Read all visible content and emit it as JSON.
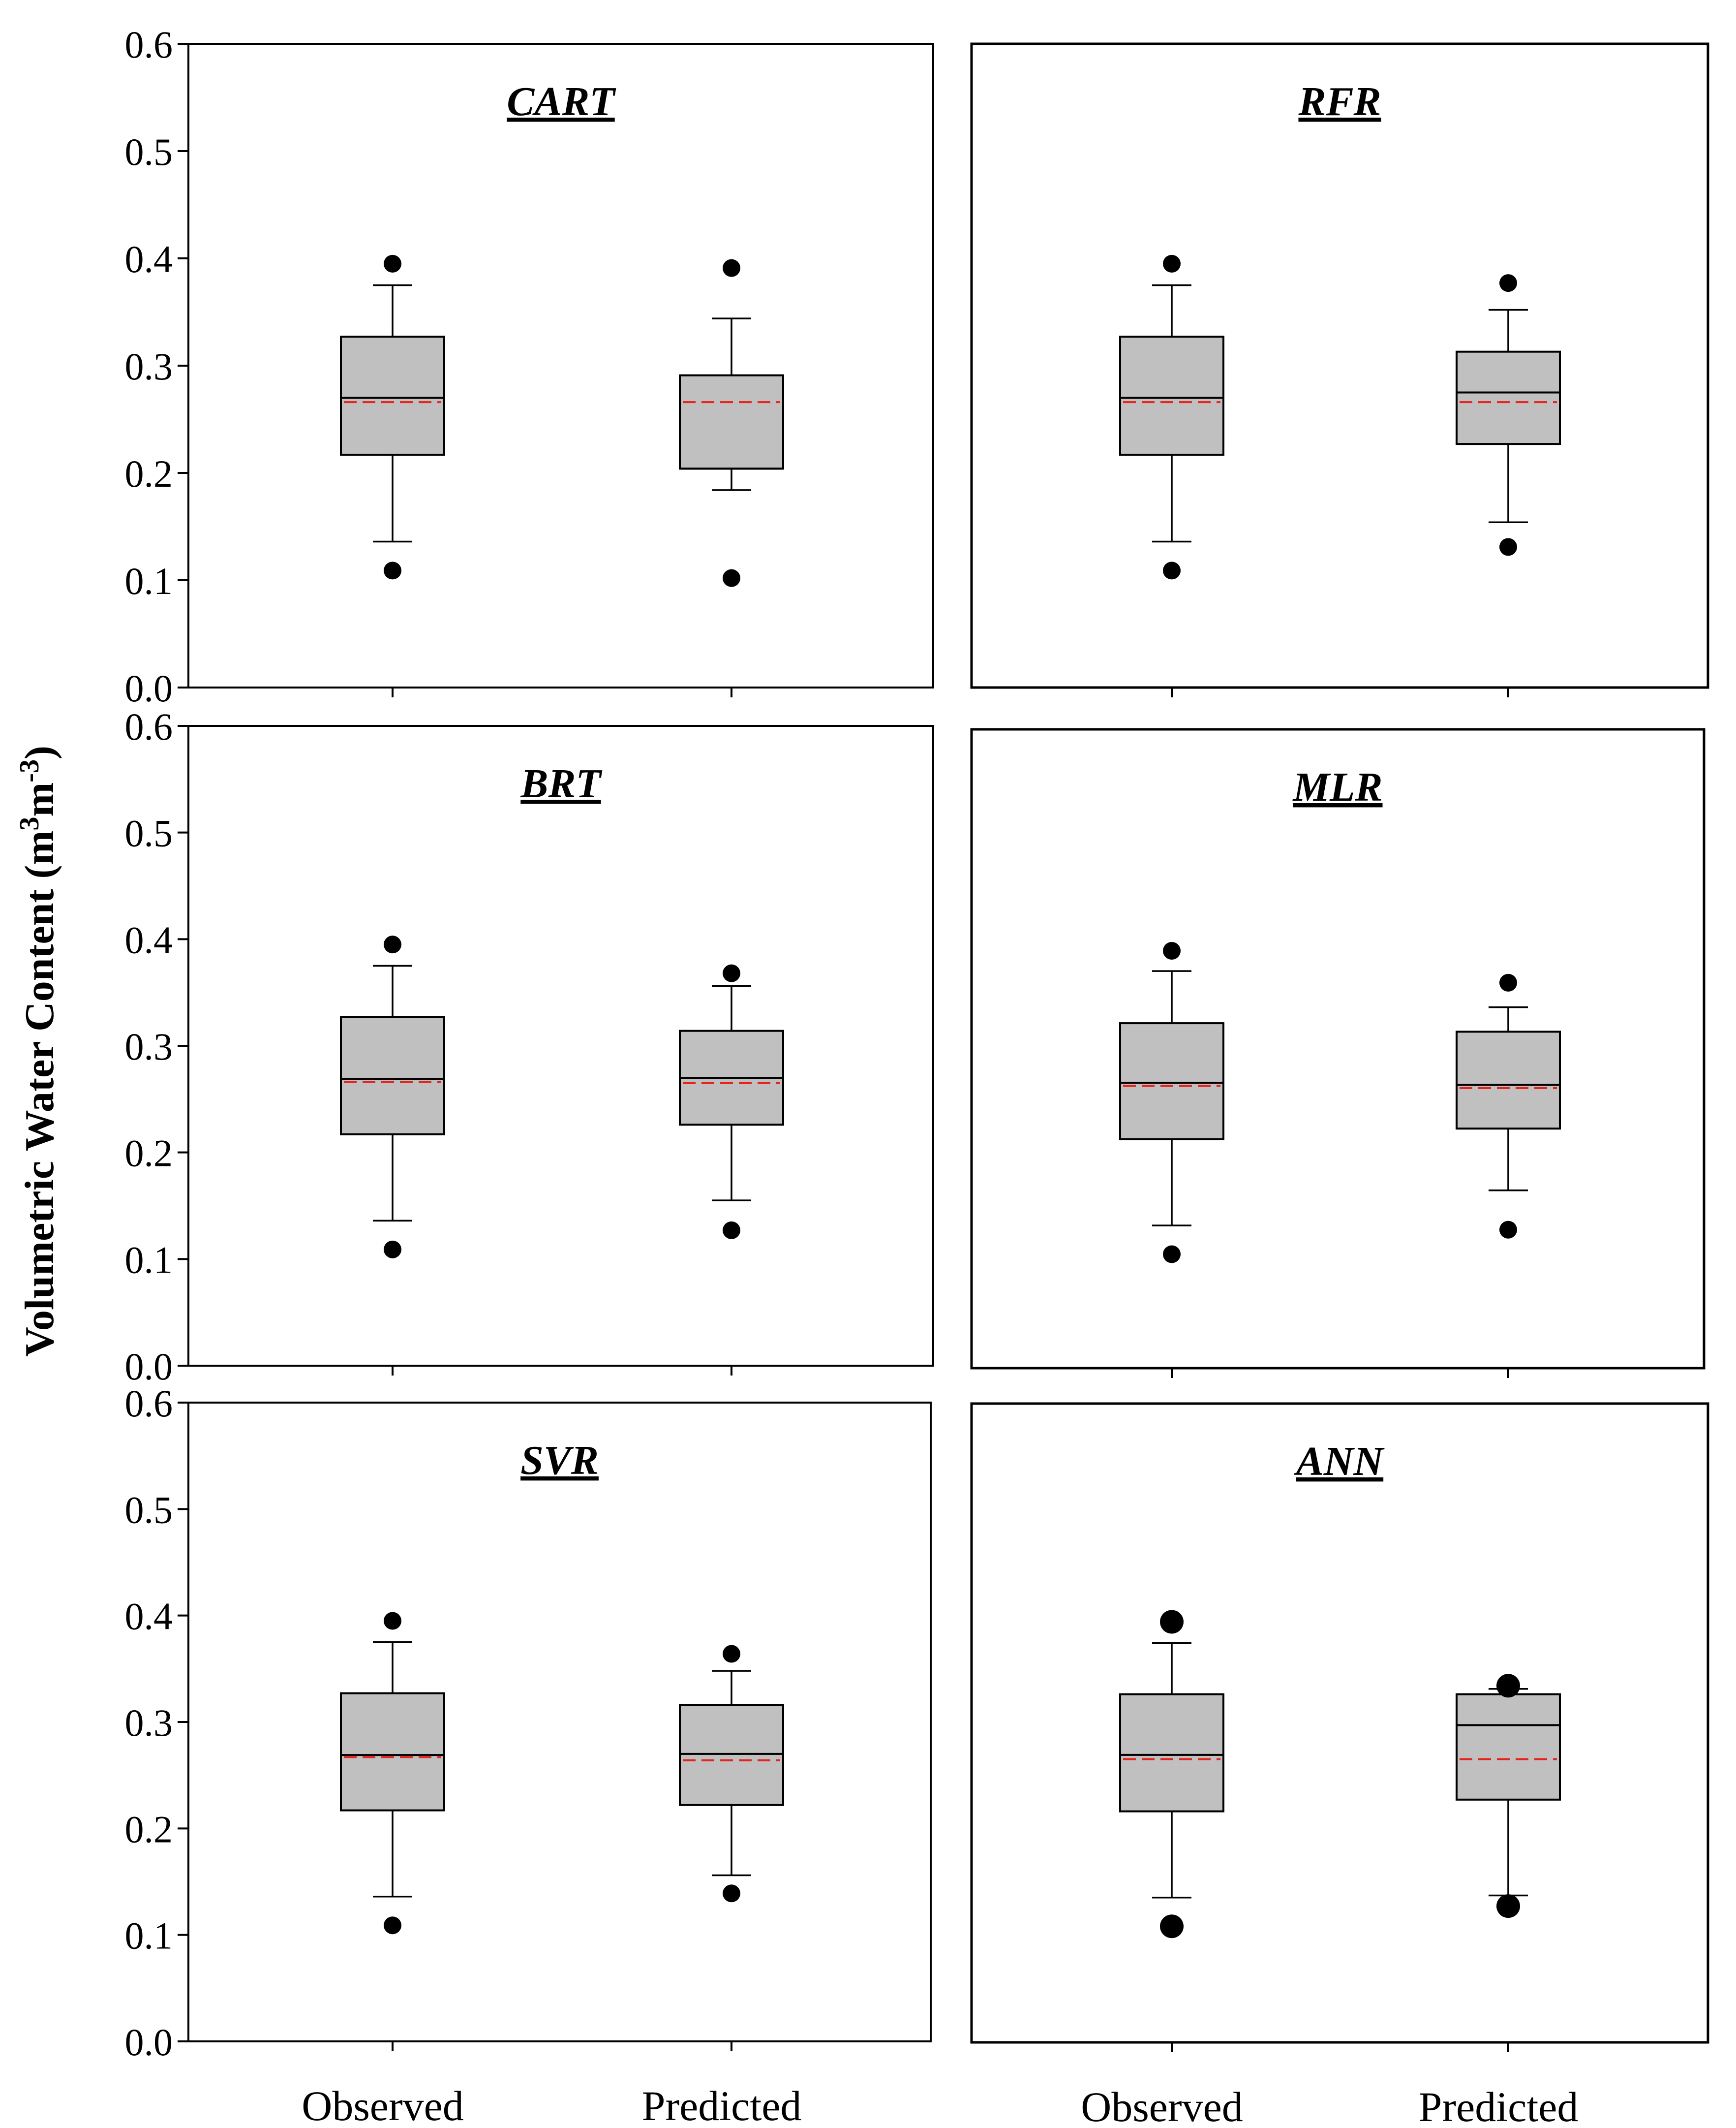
{
  "figure": {
    "ylabel_main": "Volumetric Water Content (m",
    "ylabel_sup1": "3",
    "ylabel_mid": "m",
    "ylabel_sup2": "-3",
    "ylabel_end": ")"
  },
  "colors": {
    "box_fill": "#c0c0c0",
    "mean_line": "#e8211c",
    "median_line": "#000000",
    "outlier": "#000000"
  },
  "chart_data": [
    {
      "type": "box",
      "title": "CART",
      "ylim": [
        0,
        0.6
      ],
      "yticks": [
        "0.0",
        "0.1",
        "0.2",
        "0.3",
        "0.4",
        "0.5",
        "0.6"
      ],
      "categories": [
        "Observed",
        "Predicted"
      ],
      "show_category_labels": false,
      "boxes": [
        {
          "name": "Observed",
          "whisker_low": 0.136,
          "q1": 0.217,
          "median": 0.27,
          "mean": 0.266,
          "q3": 0.327,
          "whisker_high": 0.375,
          "outliers": [
            0.395,
            0.109
          ]
        },
        {
          "name": "Predicted",
          "whisker_low": 0.184,
          "q1": 0.204,
          "median": 0.204,
          "mean": 0.266,
          "q3": 0.291,
          "whisker_high": 0.344,
          "outliers": [
            0.391,
            0.102
          ]
        }
      ]
    },
    {
      "type": "box",
      "title": "RFR",
      "ylim": [
        0,
        0.6
      ],
      "yticks": [],
      "categories": [
        "Observed",
        "Predicted"
      ],
      "show_category_labels": false,
      "boxes": [
        {
          "name": "Observed",
          "whisker_low": 0.136,
          "q1": 0.217,
          "median": 0.27,
          "mean": 0.266,
          "q3": 0.327,
          "whisker_high": 0.375,
          "outliers": [
            0.395,
            0.109
          ]
        },
        {
          "name": "Predicted",
          "whisker_low": 0.154,
          "q1": 0.227,
          "median": 0.275,
          "mean": 0.266,
          "q3": 0.313,
          "whisker_high": 0.352,
          "outliers": [
            0.377,
            0.131
          ]
        }
      ]
    },
    {
      "type": "box",
      "title": "BRT",
      "ylim": [
        0,
        0.6
      ],
      "yticks": [
        "0.0",
        "0.1",
        "0.2",
        "0.3",
        "0.4",
        "0.5",
        "0.6"
      ],
      "categories": [
        "Observed",
        "Predicted"
      ],
      "show_category_labels": false,
      "boxes": [
        {
          "name": "Observed",
          "whisker_low": 0.136,
          "q1": 0.217,
          "median": 0.269,
          "mean": 0.266,
          "q3": 0.327,
          "whisker_high": 0.375,
          "outliers": [
            0.395,
            0.109
          ]
        },
        {
          "name": "Predicted",
          "whisker_low": 0.155,
          "q1": 0.226,
          "median": 0.27,
          "mean": 0.265,
          "q3": 0.314,
          "whisker_high": 0.356,
          "outliers": [
            0.368,
            0.127
          ]
        }
      ]
    },
    {
      "type": "box",
      "title": "MLR",
      "ylim": [
        0,
        0.6
      ],
      "yticks": [],
      "categories": [
        "Observed",
        "Predicted"
      ],
      "show_category_labels": false,
      "boxes": [
        {
          "name": "Observed",
          "whisker_low": 0.134,
          "q1": 0.215,
          "median": 0.268,
          "mean": 0.265,
          "q3": 0.324,
          "whisker_high": 0.373,
          "outliers": [
            0.392,
            0.107
          ]
        },
        {
          "name": "Predicted",
          "whisker_low": 0.167,
          "q1": 0.225,
          "median": 0.266,
          "mean": 0.263,
          "q3": 0.316,
          "whisker_high": 0.339,
          "outliers": [
            0.362,
            0.13
          ]
        }
      ]
    },
    {
      "type": "box",
      "title": "SVR",
      "ylim": [
        0,
        0.6
      ],
      "yticks": [
        "0.0",
        "0.1",
        "0.2",
        "0.3",
        "0.4",
        "0.5",
        "0.6"
      ],
      "categories": [
        "Observed",
        "Predicted"
      ],
      "show_category_labels": true,
      "boxes": [
        {
          "name": "Observed",
          "whisker_low": 0.136,
          "q1": 0.217,
          "median": 0.269,
          "mean": 0.267,
          "q3": 0.327,
          "whisker_high": 0.375,
          "outliers": [
            0.395,
            0.109
          ]
        },
        {
          "name": "Predicted",
          "whisker_low": 0.156,
          "q1": 0.222,
          "median": 0.27,
          "mean": 0.264,
          "q3": 0.316,
          "whisker_high": 0.348,
          "outliers": [
            0.364,
            0.139
          ]
        }
      ]
    },
    {
      "type": "box",
      "title": "ANN",
      "ylim": [
        0,
        0.6
      ],
      "yticks": [],
      "categories": [
        "Observed",
        "Predicted"
      ],
      "show_category_labels": true,
      "boxes": [
        {
          "name": "Observed",
          "whisker_low": 0.136,
          "q1": 0.217,
          "median": 0.27,
          "mean": 0.266,
          "q3": 0.327,
          "whisker_high": 0.375,
          "outliers": [
            0.395,
            0.109
          ]
        },
        {
          "name": "Predicted",
          "whisker_low": 0.138,
          "q1": 0.228,
          "median": 0.298,
          "mean": 0.266,
          "q3": 0.327,
          "whisker_high": 0.332,
          "outliers": [
            0.335,
            0.128
          ]
        }
      ]
    }
  ]
}
